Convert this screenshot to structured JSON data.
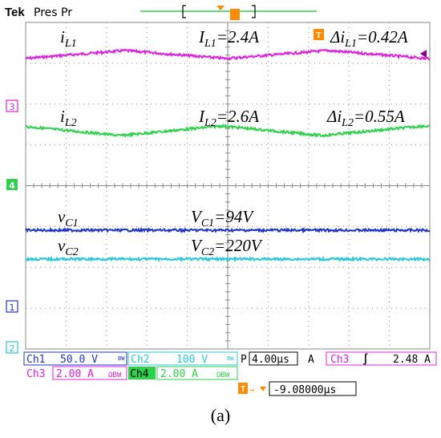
{
  "colors": {
    "ch1": "#1f35c8",
    "ch2": "#28c8d8",
    "ch3": "#e020e0",
    "ch4": "#2ed24a",
    "trigger": "#ff8c00",
    "grid": "#8a8a8a"
  },
  "header": {
    "brand": "Tek",
    "state": "Pres Pr"
  },
  "markers": {
    "ch3": "3",
    "ch4": "4",
    "ch1": "1",
    "ch2": "2",
    "trig": "T"
  },
  "labels": {
    "iL1": {
      "main": "i",
      "sub": "L1"
    },
    "IL1": {
      "main": "I",
      "sub": "L1",
      "rest": "=2.4A"
    },
    "dIL1": {
      "main": "Δi",
      "sub": "L1",
      "rest": "=0.42A"
    },
    "iL2": {
      "main": "i",
      "sub": "L2"
    },
    "IL2": {
      "main": "I",
      "sub": "L2",
      "rest": "=2.6A"
    },
    "dIL2": {
      "main": "Δi",
      "sub": "L2",
      "rest": "=0.55A"
    },
    "vC1": {
      "main": "v",
      "sub": "C1"
    },
    "VC1": {
      "main": "V",
      "sub": "C1",
      "rest": "=94V"
    },
    "vC2": {
      "main": "v",
      "sub": "C2"
    },
    "VC2": {
      "main": "V",
      "sub": "C2",
      "rest": "=220V"
    }
  },
  "status": {
    "ch1": {
      "name": "Ch1",
      "scale": "50.0 V",
      "flag": "BW"
    },
    "ch2": {
      "name": "Ch2",
      "scale": "100 V",
      "flag": "BW"
    },
    "ch3": {
      "name": "Ch3",
      "scale": "2.00 A",
      "flag": "ΩBW"
    },
    "ch4": {
      "name": "Ch4",
      "scale": "2.00 A",
      "flag": "ΩBW"
    },
    "timebase": {
      "prefix": "P",
      "value": "4.00µs"
    },
    "acq": "A",
    "trigger": {
      "source": "Ch3",
      "slope": "∫",
      "level": "2.48 A"
    },
    "position": "-9.08000µs"
  },
  "caption": "(a)",
  "chart_data": {
    "type": "line",
    "grid": true,
    "series": [
      {
        "name": "i_L1",
        "channel": "Ch3",
        "scale_per_div": "2.00 A",
        "mean": 2.4,
        "ripple_pp": 0.42,
        "waveform": "triangle"
      },
      {
        "name": "i_L2",
        "channel": "Ch4",
        "scale_per_div": "2.00 A",
        "mean": 2.6,
        "ripple_pp": 0.55,
        "waveform": "triangle"
      },
      {
        "name": "v_C1",
        "channel": "Ch1",
        "scale_per_div": "50.0 V",
        "mean": 94,
        "waveform": "flat"
      },
      {
        "name": "v_C2",
        "channel": "Ch2",
        "scale_per_div": "100 V",
        "mean": 220,
        "waveform": "flat"
      }
    ],
    "timebase_per_div": "4.00µs"
  }
}
